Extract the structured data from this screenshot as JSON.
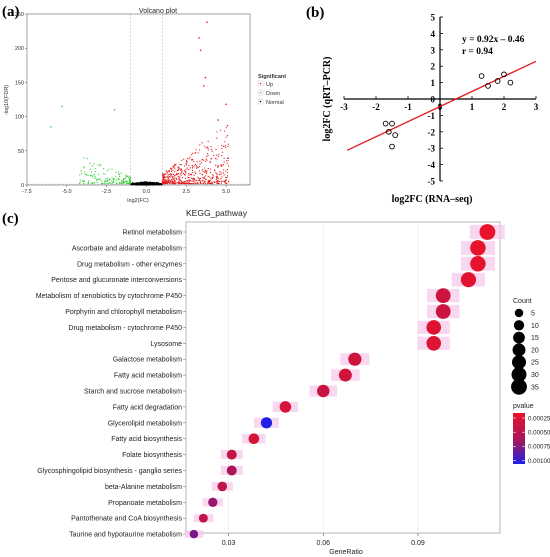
{
  "panels": {
    "a": "(a)",
    "b": "(b)",
    "c": "(c)"
  },
  "chart_data": [
    {
      "type": "scatter",
      "title": "Volcano plot",
      "xlabel": "log2(FC)",
      "ylabel": "-log10(FDR)",
      "xlim": [
        -7.5,
        6.5
      ],
      "ylim": [
        0,
        250
      ],
      "xticks": [
        "-7.5",
        "-5.0",
        "-2.5",
        "0.0",
        "2.5",
        "5.0"
      ],
      "yticks": [
        "0",
        "50",
        "100",
        "150",
        "200",
        "250"
      ],
      "legend": {
        "title": "Significant",
        "entries": [
          "Up",
          "Down",
          "Normal"
        ],
        "placement": "right"
      },
      "colors": {
        "Up": "#e41a1c",
        "Down": "#33cc33",
        "Normal": "#000000"
      },
      "threshold_lines": {
        "x": [
          -1,
          1
        ],
        "y": 1.3
      },
      "outliers": [
        {
          "x": 3.8,
          "y": 238
        },
        {
          "x": 3.3,
          "y": 215
        },
        {
          "x": 3.4,
          "y": 197
        },
        {
          "x": 3.7,
          "y": 157
        },
        {
          "x": 3.6,
          "y": 145
        },
        {
          "x": -2.0,
          "y": 110
        },
        {
          "x": -5.3,
          "y": 115
        },
        {
          "x": 5.0,
          "y": 118
        },
        {
          "x": -6.0,
          "y": 85
        },
        {
          "x": 4.5,
          "y": 95
        }
      ]
    },
    {
      "type": "scatter",
      "xlabel": "log2FC (RNA–seq)",
      "ylabel": "log2FC (qRT–PCR)",
      "xlim": [
        -3,
        3
      ],
      "ylim": [
        -5,
        5
      ],
      "xticks": [
        "-3",
        "-2",
        "-1",
        "0",
        "1",
        "2",
        "3"
      ],
      "yticks": [
        "-5",
        "-4",
        "-3",
        "-2",
        "-1",
        "0",
        "1",
        "2",
        "3",
        "4",
        "5"
      ],
      "annotations": [
        "y = 0.92x – 0.46",
        "r = 0.94"
      ],
      "fit_line": {
        "slope": 0.92,
        "intercept": -0.46,
        "color": "#e31a1c"
      },
      "points": [
        {
          "x": -1.7,
          "y": -1.5
        },
        {
          "x": -1.5,
          "y": -1.5
        },
        {
          "x": -1.6,
          "y": -2.0
        },
        {
          "x": -1.4,
          "y": -2.2
        },
        {
          "x": -1.5,
          "y": -2.9
        },
        {
          "x": 1.3,
          "y": 1.4
        },
        {
          "x": 1.5,
          "y": 0.8
        },
        {
          "x": 1.8,
          "y": 1.1
        },
        {
          "x": 2.0,
          "y": 1.5
        },
        {
          "x": 2.2,
          "y": 1.0
        }
      ]
    },
    {
      "type": "scatter",
      "title": "KEGG_pathway",
      "xlabel": "GeneRatio",
      "xlim": [
        0.0165,
        0.116
      ],
      "xticks": [
        0.03,
        0.06,
        0.09
      ],
      "xtick_labels": [
        "0.03",
        "0.06",
        "0.09"
      ],
      "size_legend": {
        "title": "Count",
        "values": [
          "5",
          "10",
          "15",
          "20",
          "25",
          "30",
          "35"
        ]
      },
      "color_legend": {
        "title": "pvalue",
        "labels": [
          "0.00025",
          "0.00050",
          "0.00075",
          "0.00100"
        ],
        "low_color": "#e8132a",
        "high_color": "#1f1fe6"
      },
      "terms": [
        {
          "name": "Retinol metabolism",
          "gene_ratio": 0.112,
          "count": 35,
          "pvalue": 2e-05
        },
        {
          "name": "Ascorbate and aldarate metabolism",
          "gene_ratio": 0.109,
          "count": 33,
          "pvalue": 3e-05
        },
        {
          "name": "Drug metabolism - other enzymes",
          "gene_ratio": 0.109,
          "count": 33,
          "pvalue": 4e-05
        },
        {
          "name": "Pentose and glucuronate interconversions",
          "gene_ratio": 0.106,
          "count": 31,
          "pvalue": 8e-05
        },
        {
          "name": "Metabolism of xenobiotics by cytochrome P450",
          "gene_ratio": 0.098,
          "count": 29,
          "pvalue": 0.00023
        },
        {
          "name": "Porphyrin and chlorophyll metabolism",
          "gene_ratio": 0.098,
          "count": 29,
          "pvalue": 0.00025
        },
        {
          "name": "Drug metabolism - cytochrome P450",
          "gene_ratio": 0.095,
          "count": 28,
          "pvalue": 0.0001
        },
        {
          "name": "Lysosome",
          "gene_ratio": 0.095,
          "count": 28,
          "pvalue": 0.00011
        },
        {
          "name": "Galactose metabolism",
          "gene_ratio": 0.07,
          "count": 21,
          "pvalue": 0.00022
        },
        {
          "name": "Fatty acid metabolism",
          "gene_ratio": 0.067,
          "count": 20,
          "pvalue": 0.0002
        },
        {
          "name": "Starch and sucrose metabolism",
          "gene_ratio": 0.06,
          "count": 18,
          "pvalue": 0.00026
        },
        {
          "name": "Fatty acid degradation",
          "gene_ratio": 0.048,
          "count": 14,
          "pvalue": 0.00018
        },
        {
          "name": "Glycerolipid metabolism",
          "gene_ratio": 0.042,
          "count": 13,
          "pvalue": 0.001
        },
        {
          "name": "Fatty acid biosynthesis",
          "gene_ratio": 0.038,
          "count": 11,
          "pvalue": 0.00018
        },
        {
          "name": "Folate biosynthesis",
          "gene_ratio": 0.031,
          "count": 9,
          "pvalue": 0.00032
        },
        {
          "name": "Glycosphingolipid biosynthesis - ganglio series",
          "gene_ratio": 0.031,
          "count": 9,
          "pvalue": 0.0005
        },
        {
          "name": "beta-Alanine metabolism",
          "gene_ratio": 0.028,
          "count": 8,
          "pvalue": 0.00035
        },
        {
          "name": "Propanoate metabolism",
          "gene_ratio": 0.025,
          "count": 7,
          "pvalue": 0.0006
        },
        {
          "name": "Pantothenate and CoA biosynthesis",
          "gene_ratio": 0.022,
          "count": 6,
          "pvalue": 0.00035
        },
        {
          "name": "Taurine and hypotaurine metabolism",
          "gene_ratio": 0.019,
          "count": 5,
          "pvalue": 0.0007
        }
      ]
    }
  ]
}
